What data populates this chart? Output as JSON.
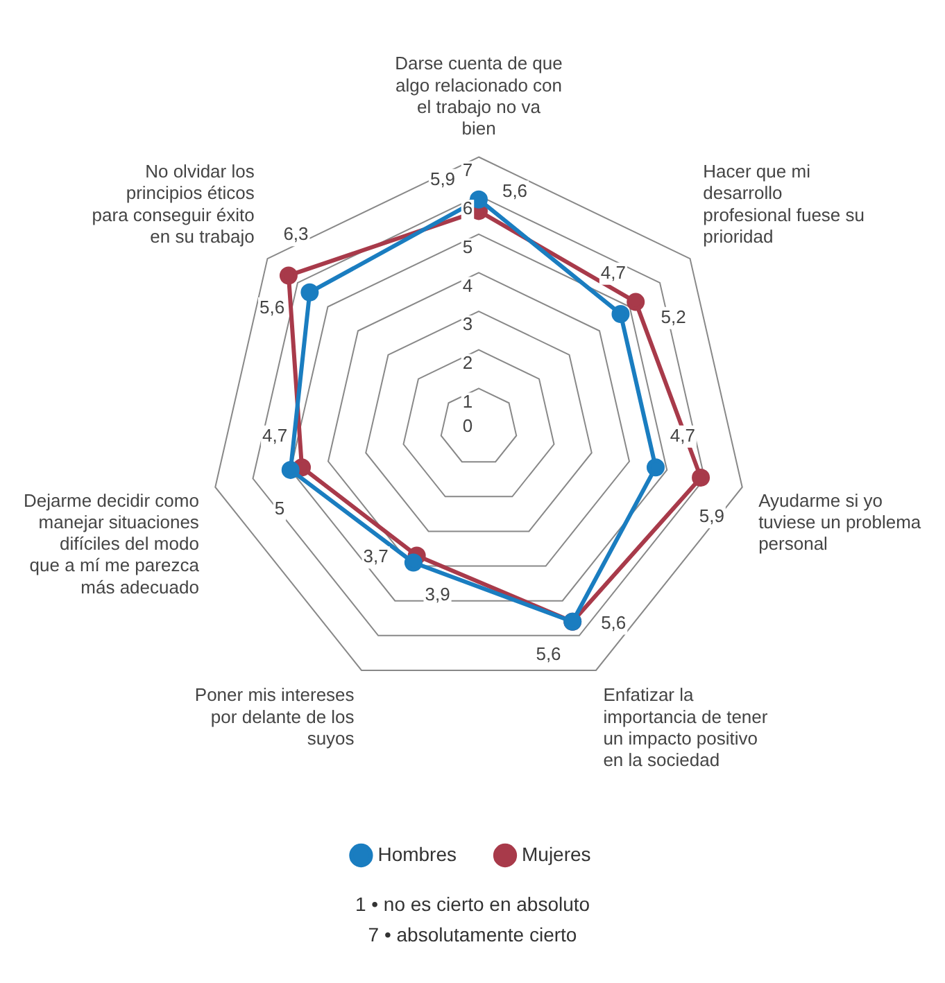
{
  "chart_data": {
    "type": "radar",
    "categories": [
      "Darse cuenta de que algo relacionado con el trabajo no va bien",
      "Hacer que mi desarrollo profesional fuese su prioridad",
      "Ayudarme si yo tuviese un problema personal",
      "Enfatizar la importancia de tener un impacto positivo en la sociedad",
      "Poner mis intereses por delante de los suyos",
      "Dejarme decidir como manejar situaciones difíciles del modo que a mí me parezca más adecuado",
      "No olvidar los principios éticos para conseguir éxito en su trabajo"
    ],
    "series": [
      {
        "name": "Hombres",
        "color": "#1a7dc0",
        "values": [
          5.9,
          4.7,
          4.7,
          5.6,
          3.9,
          5,
          5.6
        ],
        "value_labels": [
          "5,9",
          "4,7",
          "4,7",
          "5,6",
          "3,9",
          "5",
          "5,6"
        ]
      },
      {
        "name": "Mujeres",
        "color": "#a83a4a",
        "values": [
          5.6,
          5.2,
          5.9,
          5.6,
          3.7,
          4.7,
          6.3
        ],
        "value_labels": [
          "5,6",
          "5,2",
          "5,9",
          "5,6",
          "3,7",
          "4,7",
          "6,3"
        ]
      }
    ],
    "ylim": [
      0,
      7
    ],
    "yticks": [
      0,
      1,
      2,
      3,
      4,
      5,
      6,
      7
    ],
    "grid": true,
    "legend": "bottom",
    "marker": "circle",
    "line_style": "solid",
    "annotations": [
      "1 • no es cierto en absoluto",
      "7 • absolutamente cierto"
    ]
  }
}
